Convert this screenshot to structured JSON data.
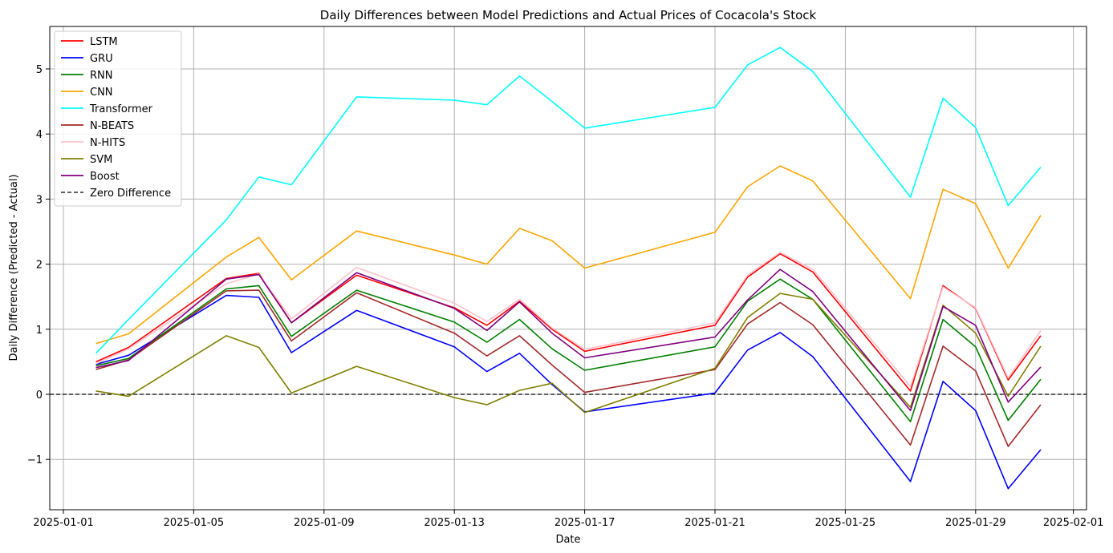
{
  "chart_data": {
    "type": "line",
    "title": "Daily Differences between Model Predictions and Actual Prices of Cocacola's Stock",
    "xlabel": "Date",
    "ylabel": "Daily Difference (Predicted - Actual)",
    "grid": true,
    "legend_position": "top-left",
    "x_tick_labels": [
      "2025-01-01",
      "2025-01-05",
      "2025-01-09",
      "2025-01-13",
      "2025-01-17",
      "2025-01-21",
      "2025-01-25",
      "2025-01-29",
      "2025-02-01"
    ],
    "x_tick_days": [
      1,
      5,
      9,
      13,
      17,
      21,
      25,
      29,
      32
    ],
    "y_tick_labels": [
      "−1",
      "0",
      "1",
      "2",
      "3",
      "4",
      "5"
    ],
    "y_tick_values": [
      -1,
      0,
      1,
      2,
      3,
      4,
      5
    ],
    "xlim": [
      "2025-01-01",
      "2025-02-01"
    ],
    "ylim": [
      -1.8,
      5.65
    ],
    "x": [
      "2025-01-02",
      "2025-01-03",
      "2025-01-06",
      "2025-01-07",
      "2025-01-08",
      "2025-01-10",
      "2025-01-13",
      "2025-01-14",
      "2025-01-15",
      "2025-01-16",
      "2025-01-17",
      "2025-01-21",
      "2025-01-22",
      "2025-01-23",
      "2025-01-24",
      "2025-01-27",
      "2025-01-28",
      "2025-01-29",
      "2025-01-30",
      "2025-01-31"
    ],
    "series": [
      {
        "name": "LSTM",
        "color": "#ff0000",
        "values": [
          0.5,
          0.72,
          1.78,
          1.86,
          1.1,
          1.83,
          1.33,
          1.06,
          1.43,
          1.0,
          0.66,
          1.06,
          1.8,
          2.16,
          1.88,
          0.05,
          1.67,
          1.32,
          0.22,
          0.9
        ]
      },
      {
        "name": "GRU",
        "color": "#0000ff",
        "values": [
          0.46,
          0.6,
          1.52,
          1.49,
          0.64,
          1.29,
          0.73,
          0.35,
          0.63,
          0.15,
          -0.27,
          0.02,
          0.68,
          0.95,
          0.58,
          -1.34,
          0.2,
          -0.25,
          -1.45,
          -0.85
        ]
      },
      {
        "name": "RNN",
        "color": "#008000",
        "values": [
          0.44,
          0.55,
          1.62,
          1.67,
          0.89,
          1.6,
          1.11,
          0.8,
          1.15,
          0.7,
          0.37,
          0.73,
          1.43,
          1.77,
          1.46,
          -0.42,
          1.15,
          0.73,
          -0.4,
          0.23
        ]
      },
      {
        "name": "CNN",
        "color": "#ffa500",
        "values": [
          0.78,
          0.93,
          2.11,
          2.41,
          1.76,
          2.51,
          2.14,
          2.0,
          2.55,
          2.36,
          1.94,
          2.49,
          3.19,
          3.51,
          3.28,
          1.47,
          3.15,
          2.93,
          1.94,
          2.75
        ]
      },
      {
        "name": "Transformer",
        "color": "#00ffff",
        "values": [
          0.63,
          1.15,
          2.68,
          3.34,
          3.22,
          4.57,
          4.52,
          4.45,
          4.89,
          4.5,
          4.09,
          4.41,
          5.06,
          5.33,
          4.96,
          3.03,
          4.55,
          4.1,
          2.9,
          3.49
        ]
      },
      {
        "name": "N-BEATS",
        "color": "#a52a2a",
        "values": [
          0.38,
          0.53,
          1.59,
          1.6,
          0.82,
          1.56,
          0.94,
          0.59,
          0.9,
          0.45,
          0.03,
          0.38,
          1.08,
          1.41,
          1.07,
          -0.78,
          0.74,
          0.36,
          -0.8,
          -0.16
        ]
      },
      {
        "name": "N-HITS",
        "color": "#ffc0cb",
        "values": [
          0.47,
          0.7,
          1.7,
          1.85,
          1.16,
          1.95,
          1.4,
          1.12,
          1.46,
          1.02,
          0.69,
          1.1,
          1.83,
          2.18,
          1.92,
          0.12,
          1.65,
          1.33,
          0.25,
          0.98
        ]
      },
      {
        "name": "SVM",
        "color": "#808000",
        "values": [
          0.05,
          -0.03,
          0.9,
          0.72,
          0.02,
          0.43,
          -0.05,
          -0.16,
          0.06,
          0.17,
          -0.28,
          0.4,
          1.18,
          1.55,
          1.46,
          -0.2,
          1.37,
          0.94,
          -0.03,
          0.74
        ]
      },
      {
        "name": "Boost",
        "color": "#800080",
        "values": [
          0.41,
          0.52,
          1.77,
          1.84,
          1.1,
          1.87,
          1.32,
          0.98,
          1.42,
          0.94,
          0.56,
          0.88,
          1.45,
          1.92,
          1.58,
          -0.25,
          1.35,
          1.06,
          -0.12,
          0.42
        ]
      }
    ],
    "reference_line": {
      "name": "Zero Difference",
      "value": 0,
      "color": "#000000",
      "style": "dashed"
    }
  }
}
